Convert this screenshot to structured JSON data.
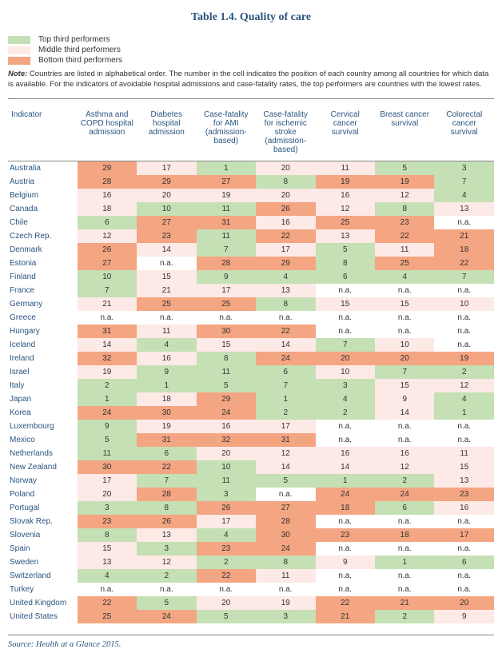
{
  "title": "Table 1.4. Quality of care",
  "colors": {
    "top": "#c5e0b4",
    "middle": "#fde9e6",
    "bottom": "#f4a582",
    "none": "#ffffff",
    "text": "#333333",
    "header_text": "#2a5580"
  },
  "legend": [
    {
      "swatch": "top",
      "label": "Top third performers"
    },
    {
      "swatch": "middle",
      "label": "Middle third performers"
    },
    {
      "swatch": "bottom",
      "label": "Bottom third performers"
    }
  ],
  "note_label": "Note:",
  "note_text": "Countries are listed in alphabetical order. The number in the cell indicates the position of each country among all countries for which data is available. For the indicators of avoidable hospital admissions and case-fatality rates, the top performers are countries with the lowest rates.",
  "indicator_label": "Indicator",
  "columns": [
    "Asthma and COPD hospital admission",
    "Diabetes hospital admission",
    "Case-fatality for AMI (admission-based)",
    "Case-fatality for ischemic stroke (admission-based)",
    "Cervical cancer survival",
    "Breast cancer survival",
    "Colorectal cancer survival"
  ],
  "rows": [
    {
      "country": "Australia",
      "cells": [
        {
          "v": "29",
          "t": "bottom"
        },
        {
          "v": "17",
          "t": "middle"
        },
        {
          "v": "1",
          "t": "top"
        },
        {
          "v": "20",
          "t": "middle"
        },
        {
          "v": "11",
          "t": "middle"
        },
        {
          "v": "5",
          "t": "top"
        },
        {
          "v": "3",
          "t": "top"
        }
      ]
    },
    {
      "country": "Austria",
      "cells": [
        {
          "v": "28",
          "t": "bottom"
        },
        {
          "v": "29",
          "t": "bottom"
        },
        {
          "v": "27",
          "t": "bottom"
        },
        {
          "v": "8",
          "t": "top"
        },
        {
          "v": "19",
          "t": "bottom"
        },
        {
          "v": "19",
          "t": "bottom"
        },
        {
          "v": "7",
          "t": "top"
        }
      ]
    },
    {
      "country": "Belgium",
      "cells": [
        {
          "v": "16",
          "t": "middle"
        },
        {
          "v": "20",
          "t": "middle"
        },
        {
          "v": "19",
          "t": "middle"
        },
        {
          "v": "20",
          "t": "middle"
        },
        {
          "v": "16",
          "t": "middle"
        },
        {
          "v": "12",
          "t": "middle"
        },
        {
          "v": "4",
          "t": "top"
        }
      ]
    },
    {
      "country": "Canada",
      "cells": [
        {
          "v": "18",
          "t": "middle"
        },
        {
          "v": "10",
          "t": "top"
        },
        {
          "v": "11",
          "t": "top"
        },
        {
          "v": "26",
          "t": "bottom"
        },
        {
          "v": "12",
          "t": "middle"
        },
        {
          "v": "8",
          "t": "top"
        },
        {
          "v": "13",
          "t": "middle"
        }
      ]
    },
    {
      "country": "Chile",
      "cells": [
        {
          "v": "6",
          "t": "top"
        },
        {
          "v": "27",
          "t": "bottom"
        },
        {
          "v": "31",
          "t": "bottom"
        },
        {
          "v": "16",
          "t": "middle"
        },
        {
          "v": "25",
          "t": "bottom"
        },
        {
          "v": "23",
          "t": "bottom"
        },
        {
          "v": "n.a.",
          "t": "none"
        }
      ]
    },
    {
      "country": "Czech Rep.",
      "cells": [
        {
          "v": "12",
          "t": "middle"
        },
        {
          "v": "23",
          "t": "bottom"
        },
        {
          "v": "11",
          "t": "top"
        },
        {
          "v": "22",
          "t": "bottom"
        },
        {
          "v": "13",
          "t": "middle"
        },
        {
          "v": "22",
          "t": "bottom"
        },
        {
          "v": "21",
          "t": "bottom"
        }
      ]
    },
    {
      "country": "Denmark",
      "cells": [
        {
          "v": "26",
          "t": "bottom"
        },
        {
          "v": "14",
          "t": "middle"
        },
        {
          "v": "7",
          "t": "top"
        },
        {
          "v": "17",
          "t": "middle"
        },
        {
          "v": "5",
          "t": "top"
        },
        {
          "v": "11",
          "t": "middle"
        },
        {
          "v": "18",
          "t": "bottom"
        }
      ]
    },
    {
      "country": "Estonia",
      "cells": [
        {
          "v": "27",
          "t": "bottom"
        },
        {
          "v": "n.a.",
          "t": "none"
        },
        {
          "v": "28",
          "t": "bottom"
        },
        {
          "v": "29",
          "t": "bottom"
        },
        {
          "v": "8",
          "t": "top"
        },
        {
          "v": "25",
          "t": "bottom"
        },
        {
          "v": "22",
          "t": "bottom"
        }
      ]
    },
    {
      "country": "Finland",
      "cells": [
        {
          "v": "10",
          "t": "top"
        },
        {
          "v": "15",
          "t": "middle"
        },
        {
          "v": "9",
          "t": "top"
        },
        {
          "v": "4",
          "t": "top"
        },
        {
          "v": "6",
          "t": "top"
        },
        {
          "v": "4",
          "t": "top"
        },
        {
          "v": "7",
          "t": "top"
        }
      ]
    },
    {
      "country": "France",
      "cells": [
        {
          "v": "7",
          "t": "top"
        },
        {
          "v": "21",
          "t": "middle"
        },
        {
          "v": "17",
          "t": "middle"
        },
        {
          "v": "13",
          "t": "middle"
        },
        {
          "v": "n.a.",
          "t": "none"
        },
        {
          "v": "n.a.",
          "t": "none"
        },
        {
          "v": "n.a.",
          "t": "none"
        }
      ]
    },
    {
      "country": "Germany",
      "cells": [
        {
          "v": "21",
          "t": "middle"
        },
        {
          "v": "25",
          "t": "bottom"
        },
        {
          "v": "25",
          "t": "bottom"
        },
        {
          "v": "8",
          "t": "top"
        },
        {
          "v": "15",
          "t": "middle"
        },
        {
          "v": "15",
          "t": "middle"
        },
        {
          "v": "10",
          "t": "middle"
        }
      ]
    },
    {
      "country": "Greece",
      "cells": [
        {
          "v": "n.a.",
          "t": "none"
        },
        {
          "v": "n.a.",
          "t": "none"
        },
        {
          "v": "n.a.",
          "t": "none"
        },
        {
          "v": "n.a.",
          "t": "none"
        },
        {
          "v": "n.a.",
          "t": "none"
        },
        {
          "v": "n.a.",
          "t": "none"
        },
        {
          "v": "n.a.",
          "t": "none"
        }
      ]
    },
    {
      "country": "Hungary",
      "cells": [
        {
          "v": "31",
          "t": "bottom"
        },
        {
          "v": "11",
          "t": "middle"
        },
        {
          "v": "30",
          "t": "bottom"
        },
        {
          "v": "22",
          "t": "bottom"
        },
        {
          "v": "n.a.",
          "t": "none"
        },
        {
          "v": "n.a.",
          "t": "none"
        },
        {
          "v": "n.a.",
          "t": "none"
        }
      ]
    },
    {
      "country": "Iceland",
      "cells": [
        {
          "v": "14",
          "t": "middle"
        },
        {
          "v": "4",
          "t": "top"
        },
        {
          "v": "15",
          "t": "middle"
        },
        {
          "v": "14",
          "t": "middle"
        },
        {
          "v": "7",
          "t": "top"
        },
        {
          "v": "10",
          "t": "middle"
        },
        {
          "v": "n.a.",
          "t": "none"
        }
      ]
    },
    {
      "country": "Ireland",
      "cells": [
        {
          "v": "32",
          "t": "bottom"
        },
        {
          "v": "16",
          "t": "middle"
        },
        {
          "v": "8",
          "t": "top"
        },
        {
          "v": "24",
          "t": "bottom"
        },
        {
          "v": "20",
          "t": "bottom"
        },
        {
          "v": "20",
          "t": "bottom"
        },
        {
          "v": "19",
          "t": "bottom"
        }
      ]
    },
    {
      "country": "Israel",
      "cells": [
        {
          "v": "19",
          "t": "middle"
        },
        {
          "v": "9",
          "t": "top"
        },
        {
          "v": "11",
          "t": "top"
        },
        {
          "v": "6",
          "t": "top"
        },
        {
          "v": "10",
          "t": "middle"
        },
        {
          "v": "7",
          "t": "top"
        },
        {
          "v": "2",
          "t": "top"
        }
      ]
    },
    {
      "country": "Italy",
      "cells": [
        {
          "v": "2",
          "t": "top"
        },
        {
          "v": "1",
          "t": "top"
        },
        {
          "v": "5",
          "t": "top"
        },
        {
          "v": "7",
          "t": "top"
        },
        {
          "v": "3",
          "t": "top"
        },
        {
          "v": "15",
          "t": "middle"
        },
        {
          "v": "12",
          "t": "middle"
        }
      ]
    },
    {
      "country": "Japan",
      "cells": [
        {
          "v": "1",
          "t": "top"
        },
        {
          "v": "18",
          "t": "middle"
        },
        {
          "v": "29",
          "t": "bottom"
        },
        {
          "v": "1",
          "t": "top"
        },
        {
          "v": "4",
          "t": "top"
        },
        {
          "v": "9",
          "t": "middle"
        },
        {
          "v": "4",
          "t": "top"
        }
      ]
    },
    {
      "country": "Korea",
      "cells": [
        {
          "v": "24",
          "t": "bottom"
        },
        {
          "v": "30",
          "t": "bottom"
        },
        {
          "v": "24",
          "t": "bottom"
        },
        {
          "v": "2",
          "t": "top"
        },
        {
          "v": "2",
          "t": "top"
        },
        {
          "v": "14",
          "t": "middle"
        },
        {
          "v": "1",
          "t": "top"
        }
      ]
    },
    {
      "country": "Luxembourg",
      "cells": [
        {
          "v": "9",
          "t": "top"
        },
        {
          "v": "19",
          "t": "middle"
        },
        {
          "v": "16",
          "t": "middle"
        },
        {
          "v": "17",
          "t": "middle"
        },
        {
          "v": "n.a.",
          "t": "none"
        },
        {
          "v": "n.a.",
          "t": "none"
        },
        {
          "v": "n.a.",
          "t": "none"
        }
      ]
    },
    {
      "country": "Mexico",
      "cells": [
        {
          "v": "5",
          "t": "top"
        },
        {
          "v": "31",
          "t": "bottom"
        },
        {
          "v": "32",
          "t": "bottom"
        },
        {
          "v": "31",
          "t": "bottom"
        },
        {
          "v": "n.a.",
          "t": "none"
        },
        {
          "v": "n.a.",
          "t": "none"
        },
        {
          "v": "n.a.",
          "t": "none"
        }
      ]
    },
    {
      "country": "Netherlands",
      "cells": [
        {
          "v": "11",
          "t": "top"
        },
        {
          "v": "6",
          "t": "top"
        },
        {
          "v": "20",
          "t": "middle"
        },
        {
          "v": "12",
          "t": "middle"
        },
        {
          "v": "16",
          "t": "middle"
        },
        {
          "v": "16",
          "t": "middle"
        },
        {
          "v": "11",
          "t": "middle"
        }
      ]
    },
    {
      "country": "New Zealand",
      "cells": [
        {
          "v": "30",
          "t": "bottom"
        },
        {
          "v": "22",
          "t": "bottom"
        },
        {
          "v": "10",
          "t": "top"
        },
        {
          "v": "14",
          "t": "middle"
        },
        {
          "v": "14",
          "t": "middle"
        },
        {
          "v": "12",
          "t": "middle"
        },
        {
          "v": "15",
          "t": "middle"
        }
      ]
    },
    {
      "country": "Norway",
      "cells": [
        {
          "v": "17",
          "t": "middle"
        },
        {
          "v": "7",
          "t": "top"
        },
        {
          "v": "11",
          "t": "top"
        },
        {
          "v": "5",
          "t": "top"
        },
        {
          "v": "1",
          "t": "top"
        },
        {
          "v": "2",
          "t": "top"
        },
        {
          "v": "13",
          "t": "middle"
        }
      ]
    },
    {
      "country": "Poland",
      "cells": [
        {
          "v": "20",
          "t": "middle"
        },
        {
          "v": "28",
          "t": "bottom"
        },
        {
          "v": "3",
          "t": "top"
        },
        {
          "v": "n.a.",
          "t": "none"
        },
        {
          "v": "24",
          "t": "bottom"
        },
        {
          "v": "24",
          "t": "bottom"
        },
        {
          "v": "23",
          "t": "bottom"
        }
      ]
    },
    {
      "country": "Portugal",
      "cells": [
        {
          "v": "3",
          "t": "top"
        },
        {
          "v": "8",
          "t": "top"
        },
        {
          "v": "26",
          "t": "bottom"
        },
        {
          "v": "27",
          "t": "bottom"
        },
        {
          "v": "18",
          "t": "bottom"
        },
        {
          "v": "6",
          "t": "top"
        },
        {
          "v": "16",
          "t": "middle"
        }
      ]
    },
    {
      "country": "Slovak Rep.",
      "cells": [
        {
          "v": "23",
          "t": "bottom"
        },
        {
          "v": "26",
          "t": "bottom"
        },
        {
          "v": "17",
          "t": "middle"
        },
        {
          "v": "28",
          "t": "bottom"
        },
        {
          "v": "n.a.",
          "t": "none"
        },
        {
          "v": "n.a.",
          "t": "none"
        },
        {
          "v": "n.a.",
          "t": "none"
        }
      ]
    },
    {
      "country": "Slovenia",
      "cells": [
        {
          "v": "8",
          "t": "top"
        },
        {
          "v": "13",
          "t": "middle"
        },
        {
          "v": "4",
          "t": "top"
        },
        {
          "v": "30",
          "t": "bottom"
        },
        {
          "v": "23",
          "t": "bottom"
        },
        {
          "v": "18",
          "t": "bottom"
        },
        {
          "v": "17",
          "t": "bottom"
        }
      ]
    },
    {
      "country": "Spain",
      "cells": [
        {
          "v": "15",
          "t": "middle"
        },
        {
          "v": "3",
          "t": "top"
        },
        {
          "v": "23",
          "t": "bottom"
        },
        {
          "v": "24",
          "t": "bottom"
        },
        {
          "v": "n.a.",
          "t": "none"
        },
        {
          "v": "n.a.",
          "t": "none"
        },
        {
          "v": "n.a.",
          "t": "none"
        }
      ]
    },
    {
      "country": "Sweden",
      "cells": [
        {
          "v": "13",
          "t": "middle"
        },
        {
          "v": "12",
          "t": "middle"
        },
        {
          "v": "2",
          "t": "top"
        },
        {
          "v": "8",
          "t": "top"
        },
        {
          "v": "9",
          "t": "middle"
        },
        {
          "v": "1",
          "t": "top"
        },
        {
          "v": "6",
          "t": "top"
        }
      ]
    },
    {
      "country": "Switzerland",
      "cells": [
        {
          "v": "4",
          "t": "top"
        },
        {
          "v": "2",
          "t": "top"
        },
        {
          "v": "22",
          "t": "bottom"
        },
        {
          "v": "11",
          "t": "middle"
        },
        {
          "v": "n.a.",
          "t": "none"
        },
        {
          "v": "n.a.",
          "t": "none"
        },
        {
          "v": "n.a.",
          "t": "none"
        }
      ]
    },
    {
      "country": "Turkey",
      "cells": [
        {
          "v": "n.a.",
          "t": "none"
        },
        {
          "v": "n.a.",
          "t": "none"
        },
        {
          "v": "n.a.",
          "t": "none"
        },
        {
          "v": "n.a.",
          "t": "none"
        },
        {
          "v": "n.a.",
          "t": "none"
        },
        {
          "v": "n.a.",
          "t": "none"
        },
        {
          "v": "n.a.",
          "t": "none"
        }
      ]
    },
    {
      "country": "United Kingdom",
      "cells": [
        {
          "v": "22",
          "t": "bottom"
        },
        {
          "v": "5",
          "t": "top"
        },
        {
          "v": "20",
          "t": "middle"
        },
        {
          "v": "19",
          "t": "middle"
        },
        {
          "v": "22",
          "t": "bottom"
        },
        {
          "v": "21",
          "t": "bottom"
        },
        {
          "v": "20",
          "t": "bottom"
        }
      ]
    },
    {
      "country": "United States",
      "cells": [
        {
          "v": "25",
          "t": "bottom"
        },
        {
          "v": "24",
          "t": "bottom"
        },
        {
          "v": "5",
          "t": "top"
        },
        {
          "v": "3",
          "t": "top"
        },
        {
          "v": "21",
          "t": "bottom"
        },
        {
          "v": "2",
          "t": "top"
        },
        {
          "v": "9",
          "t": "middle"
        }
      ]
    }
  ],
  "source_label": "Source:",
  "source_text": "Health at a Glance 2015."
}
